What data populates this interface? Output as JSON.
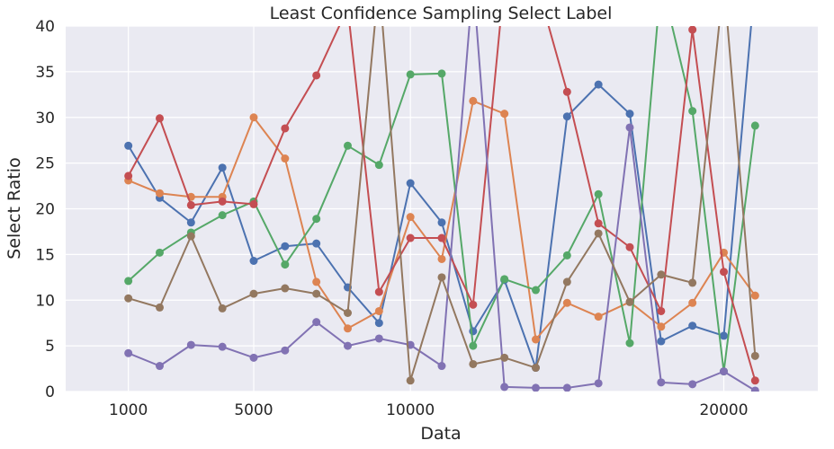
{
  "chart_data": {
    "type": "line",
    "title": "Least Confidence Sampling Select Label",
    "xlabel": "Data",
    "ylabel": "Select Ratio",
    "xlim": [
      -1000,
      23000
    ],
    "ylim": [
      0,
      40
    ],
    "x_ticks": [
      1000,
      5000,
      10000,
      20000
    ],
    "y_ticks": [
      0,
      5,
      10,
      15,
      20,
      25,
      30,
      35,
      40
    ],
    "grid": true,
    "background": "#eaeaf2",
    "x": [
      1000,
      2000,
      3000,
      4000,
      5000,
      6000,
      7000,
      8000,
      9000,
      10000,
      11000,
      12000,
      13000,
      14000,
      15000,
      16000,
      17000,
      18000,
      19000,
      20000,
      21000
    ],
    "series": [
      {
        "color": "#4c72b0",
        "values": [
          26.9,
          21.2,
          18.5,
          24.5,
          14.3,
          15.9,
          16.2,
          11.4,
          7.5,
          22.8,
          18.5,
          6.6,
          12.2,
          2.6,
          30.1,
          33.6,
          30.4,
          5.5,
          7.2,
          6.1,
          45
        ]
      },
      {
        "color": "#dd8452",
        "values": [
          23.1,
          21.7,
          21.3,
          21.3,
          30.0,
          25.5,
          12.0,
          6.9,
          8.8,
          19.1,
          14.5,
          31.8,
          30.4,
          5.7,
          9.7,
          8.2,
          9.8,
          7.1,
          9.7,
          15.2,
          10.5
        ]
      },
      {
        "color": "#55a868",
        "values": [
          12.1,
          15.2,
          17.4,
          19.3,
          20.8,
          13.9,
          18.9,
          26.9,
          24.8,
          34.7,
          34.8,
          5.0,
          12.3,
          11.1,
          14.9,
          21.6,
          5.3,
          45,
          30.7,
          2.2,
          29.1
        ]
      },
      {
        "color": "#c44e52",
        "values": [
          23.6,
          29.9,
          20.4,
          20.8,
          20.5,
          28.8,
          34.6,
          42,
          10.9,
          16.8,
          16.8,
          9.5,
          45,
          45,
          32.8,
          18.4,
          15.8,
          8.8,
          39.6,
          13.1,
          1.2
        ]
      },
      {
        "color": "#8172b3",
        "values": [
          4.2,
          2.8,
          5.1,
          4.9,
          3.7,
          4.5,
          7.6,
          5.0,
          5.8,
          5.1,
          2.8,
          45,
          0.5,
          0.4,
          0.4,
          0.9,
          28.9,
          1.0,
          0.8,
          2.2,
          0.1
        ]
      },
      {
        "color": "#937860",
        "values": [
          10.2,
          9.2,
          17.0,
          9.1,
          10.7,
          11.3,
          10.7,
          8.6,
          45,
          1.2,
          12.5,
          3.0,
          3.7,
          2.6,
          12.0,
          17.3,
          9.8,
          12.8,
          11.9,
          45,
          3.9
        ]
      }
    ]
  }
}
